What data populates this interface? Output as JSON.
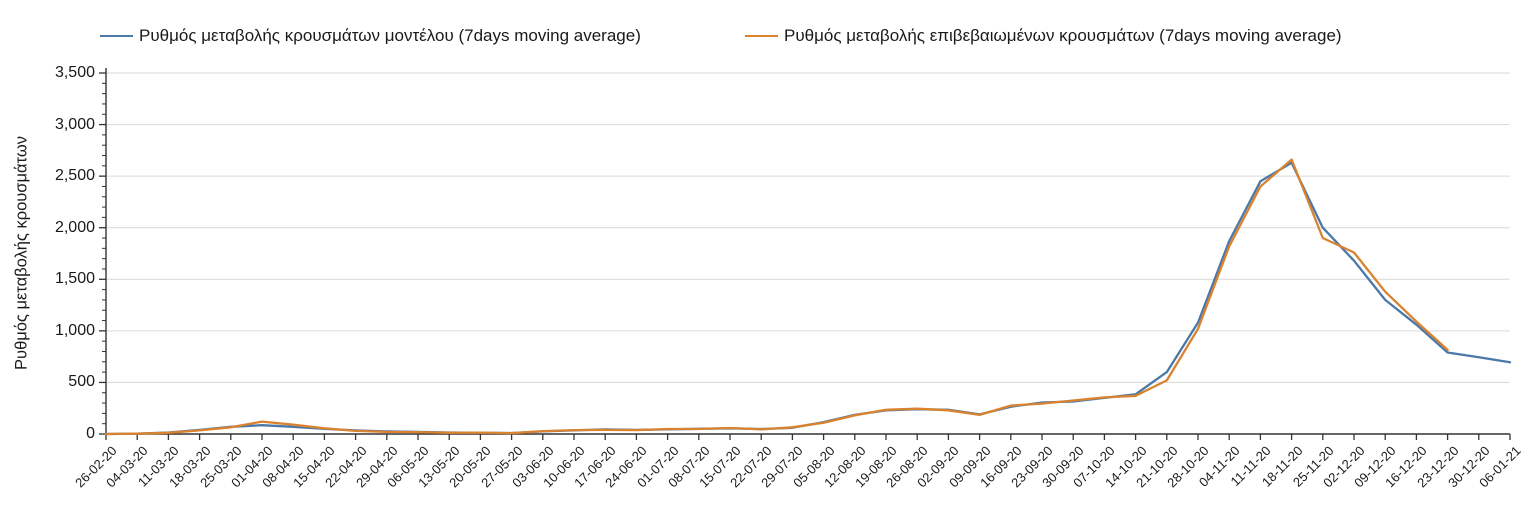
{
  "legend": {
    "items": [
      {
        "id": "model",
        "label": "Ρυθμός μεταβολής κρουσμάτων μοντέλου (7days moving average)",
        "color": "#4a78a8"
      },
      {
        "id": "confirmed",
        "label": "Ρυθμός μεταβολής επιβεβαιωμένων κρουσμάτων (7days moving average)",
        "color": "#d9822f"
      }
    ]
  },
  "chart_data": {
    "type": "line",
    "title": "",
    "xlabel": "",
    "ylabel": "Ρυθμός μεταβολής κρουσμάτων",
    "ylim": [
      0,
      3500
    ],
    "ytick_step": 500,
    "y_minor_tick_step": 100,
    "grid": "horizontal",
    "legend_position": "top",
    "colors": {
      "grid": "#d9d9d9",
      "axis": "#333333",
      "text": "#1a1a1a"
    },
    "categories": [
      "26-02-20",
      "04-03-20",
      "11-03-20",
      "18-03-20",
      "25-03-20",
      "01-04-20",
      "08-04-20",
      "15-04-20",
      "22-04-20",
      "29-04-20",
      "06-05-20",
      "13-05-20",
      "20-05-20",
      "27-05-20",
      "03-06-20",
      "10-06-20",
      "17-06-20",
      "24-06-20",
      "01-07-20",
      "08-07-20",
      "15-07-20",
      "22-07-20",
      "29-07-20",
      "05-08-20",
      "12-08-20",
      "19-08-20",
      "26-08-20",
      "02-09-20",
      "09-09-20",
      "16-09-20",
      "23-09-20",
      "30-09-20",
      "07-10-20",
      "14-10-20",
      "21-10-20",
      "28-10-20",
      "04-11-20",
      "11-11-20",
      "18-11-20",
      "25-11-20",
      "02-12-20",
      "09-12-20",
      "16-12-20",
      "23-12-20",
      "30-12-20",
      "06-01-21"
    ],
    "series": [
      {
        "name": "Ρυθμός μεταβολής κρουσμάτων μοντέλου (7days moving average)",
        "color": "#4a78a8",
        "values": [
          0,
          4,
          15,
          40,
          70,
          85,
          70,
          50,
          35,
          25,
          20,
          15,
          12,
          10,
          25,
          35,
          45,
          40,
          45,
          50,
          55,
          48,
          60,
          115,
          185,
          230,
          240,
          235,
          190,
          265,
          305,
          315,
          350,
          385,
          600,
          1080,
          1870,
          2450,
          2630,
          2000,
          1680,
          1300,
          1060,
          790,
          745,
          695
        ]
      },
      {
        "name": "Ρυθμός μεταβολής επιβεβαιωμένων κρουσμάτων (7days moving average)",
        "color": "#d9822f",
        "values": [
          0,
          3,
          12,
          35,
          65,
          120,
          90,
          55,
          30,
          20,
          18,
          12,
          14,
          8,
          28,
          38,
          40,
          38,
          48,
          48,
          58,
          45,
          65,
          110,
          180,
          235,
          245,
          230,
          185,
          275,
          295,
          325,
          355,
          370,
          520,
          1020,
          1820,
          2400,
          2660,
          1900,
          1760,
          1380,
          1090,
          815,
          null,
          null
        ]
      }
    ]
  }
}
